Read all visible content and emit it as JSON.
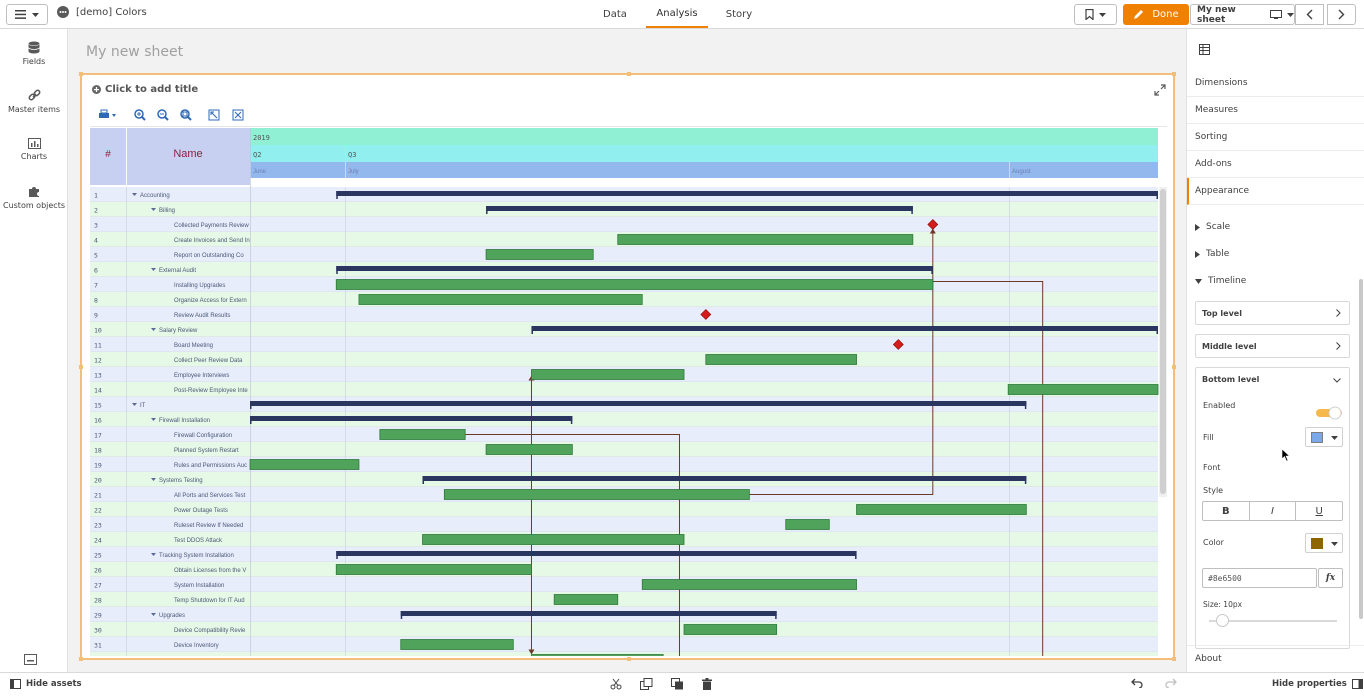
{
  "app": {
    "title": "[demo] Colors"
  },
  "nav": {
    "tabs": [
      "Data",
      "Analysis",
      "Story"
    ],
    "active": "Analysis"
  },
  "toolbar": {
    "done_label": "Done",
    "sheet_label": "My new sheet"
  },
  "left_panel": {
    "items": [
      "Fields",
      "Master items",
      "Charts",
      "Custom objects"
    ]
  },
  "sheet": {
    "title": "My new sheet"
  },
  "viz": {
    "title_placeholder": "Click to add title"
  },
  "gantt": {
    "header": {
      "num": "#",
      "name": "Name",
      "year": "2019",
      "quarters": [
        "Q2",
        "Q3"
      ],
      "months": [
        "June",
        "July",
        "August"
      ]
    },
    "colors": {
      "year_bg": "#8ff0d4",
      "quarter_bg": "#92efef",
      "month_bg": "#93b8ee",
      "header_bg": "#c7d0f1",
      "name_color": "#8e2040",
      "summary_bar": "#2a3560",
      "task_bar": "#4fa35a",
      "milestone": "#d41c1c",
      "link": "#6b3a2a",
      "row_a": "#e8edfb",
      "row_b": "#e6f8e6"
    },
    "rows": [
      {
        "n": 1,
        "name": "Accounting",
        "lvl": 0,
        "group": true
      },
      {
        "n": 2,
        "name": "Billing",
        "lvl": 1,
        "group": true
      },
      {
        "n": 3,
        "name": "Collected Payments Review",
        "lvl": 2
      },
      {
        "n": 4,
        "name": "Create Invoices and Send In",
        "lvl": 2
      },
      {
        "n": 5,
        "name": "Report on Outstanding Co",
        "lvl": 2
      },
      {
        "n": 6,
        "name": "External Audit",
        "lvl": 1,
        "group": true
      },
      {
        "n": 7,
        "name": "Installing Upgrades",
        "lvl": 2
      },
      {
        "n": 8,
        "name": "Organize Access for Extern",
        "lvl": 2
      },
      {
        "n": 9,
        "name": "Review Audit Results",
        "lvl": 2
      },
      {
        "n": 10,
        "name": "Salary Review",
        "lvl": 1,
        "group": true
      },
      {
        "n": 11,
        "name": "Board Meeting",
        "lvl": 2
      },
      {
        "n": 12,
        "name": "Collect Peer Review Data",
        "lvl": 2
      },
      {
        "n": 13,
        "name": "Employee Interviews",
        "lvl": 2
      },
      {
        "n": 14,
        "name": "Post-Review Employee Inte",
        "lvl": 2
      },
      {
        "n": 15,
        "name": "IT",
        "lvl": 0,
        "group": true
      },
      {
        "n": 16,
        "name": "Firewall Installation",
        "lvl": 1,
        "group": true
      },
      {
        "n": 17,
        "name": "Firewall Configuration",
        "lvl": 2
      },
      {
        "n": 18,
        "name": "Planned System Restart",
        "lvl": 2
      },
      {
        "n": 19,
        "name": "Rules and Permissions Auc",
        "lvl": 2
      },
      {
        "n": 20,
        "name": "Systems Testing",
        "lvl": 1,
        "group": true
      },
      {
        "n": 21,
        "name": "All Ports and Services Test",
        "lvl": 2
      },
      {
        "n": 22,
        "name": "Power Outage Tests",
        "lvl": 2
      },
      {
        "n": 23,
        "name": "Ruleset Review If Needed",
        "lvl": 2
      },
      {
        "n": 24,
        "name": "Test DDOS Attack",
        "lvl": 2
      },
      {
        "n": 25,
        "name": "Tracking System Installation",
        "lvl": 1,
        "group": true
      },
      {
        "n": 26,
        "name": "Obtain Licenses from the V",
        "lvl": 2
      },
      {
        "n": 27,
        "name": "System Installation",
        "lvl": 2
      },
      {
        "n": 28,
        "name": "Temp Shutdown for IT Aud",
        "lvl": 2
      },
      {
        "n": 29,
        "name": "Upgrades",
        "lvl": 1,
        "group": true
      },
      {
        "n": 30,
        "name": "Device Compatibility Revie",
        "lvl": 2
      },
      {
        "n": 31,
        "name": "Device Inventory",
        "lvl": 2
      },
      {
        "n": 32,
        "name": "Faulty Devices Check",
        "lvl": 2
      }
    ],
    "bars": [
      {
        "row": 1,
        "s": 0.095,
        "e": 1.0,
        "t": "sum"
      },
      {
        "row": 2,
        "s": 0.26,
        "e": 0.73,
        "t": "sum"
      },
      {
        "row": 3,
        "ms": 0.752
      },
      {
        "row": 4,
        "s": 0.405,
        "e": 0.73,
        "t": "task"
      },
      {
        "row": 5,
        "s": 0.26,
        "e": 0.378,
        "t": "task"
      },
      {
        "row": 6,
        "s": 0.095,
        "e": 0.752,
        "t": "sum"
      },
      {
        "row": 7,
        "s": 0.095,
        "e": 0.752,
        "t": "task"
      },
      {
        "row": 8,
        "s": 0.12,
        "e": 0.432,
        "t": "task"
      },
      {
        "row": 9,
        "ms": 0.502
      },
      {
        "row": 10,
        "s": 0.31,
        "e": 1.0,
        "t": "sum"
      },
      {
        "row": 11,
        "ms": 0.714
      },
      {
        "row": 12,
        "s": 0.502,
        "e": 0.668,
        "t": "task"
      },
      {
        "row": 13,
        "s": 0.31,
        "e": 0.478,
        "t": "task"
      },
      {
        "row": 14,
        "s": 0.835,
        "e": 1.0,
        "t": "task"
      },
      {
        "row": 15,
        "s": 0.0,
        "e": 0.855,
        "t": "sum"
      },
      {
        "row": 16,
        "s": 0.0,
        "e": 0.355,
        "t": "sum"
      },
      {
        "row": 17,
        "s": 0.143,
        "e": 0.237,
        "t": "task"
      },
      {
        "row": 18,
        "s": 0.26,
        "e": 0.355,
        "t": "task"
      },
      {
        "row": 19,
        "s": 0.0,
        "e": 0.12,
        "t": "task"
      },
      {
        "row": 20,
        "s": 0.19,
        "e": 0.855,
        "t": "sum"
      },
      {
        "row": 21,
        "s": 0.214,
        "e": 0.55,
        "t": "task"
      },
      {
        "row": 22,
        "s": 0.668,
        "e": 0.855,
        "t": "task"
      },
      {
        "row": 23,
        "s": 0.59,
        "e": 0.638,
        "t": "task"
      },
      {
        "row": 24,
        "s": 0.19,
        "e": 0.478,
        "t": "task"
      },
      {
        "row": 25,
        "s": 0.095,
        "e": 0.668,
        "t": "sum"
      },
      {
        "row": 26,
        "s": 0.095,
        "e": 0.31,
        "t": "task"
      },
      {
        "row": 27,
        "s": 0.432,
        "e": 0.668,
        "t": "task"
      },
      {
        "row": 28,
        "s": 0.335,
        "e": 0.405,
        "t": "task"
      },
      {
        "row": 29,
        "s": 0.166,
        "e": 0.58,
        "t": "sum"
      },
      {
        "row": 30,
        "s": 0.478,
        "e": 0.58,
        "t": "task"
      },
      {
        "row": 31,
        "s": 0.166,
        "e": 0.29,
        "t": "task"
      },
      {
        "row": 32,
        "s": 0.31,
        "e": 0.455,
        "t": "task"
      }
    ]
  },
  "right_panel": {
    "items": [
      "Dimensions",
      "Measures",
      "Sorting",
      "Add-ons",
      "Appearance"
    ],
    "active": "Appearance",
    "sections": [
      "Scale",
      "Table",
      "Timeline"
    ],
    "levels": [
      "Top level",
      "Middle level",
      "Bottom level"
    ],
    "enabled_label": "Enabled",
    "fill_label": "Fill",
    "fill_color": "#7aa8e8",
    "font_label": "Font",
    "style_label": "Style",
    "style_buttons": [
      "B",
      "I",
      "U"
    ],
    "color_label": "Color",
    "font_color": "#8e6500",
    "color_value": "#8e6500",
    "size_label": "Size: 10px",
    "about": "About"
  },
  "status": {
    "hide_assets": "Hide assets",
    "hide_properties": "Hide properties"
  }
}
